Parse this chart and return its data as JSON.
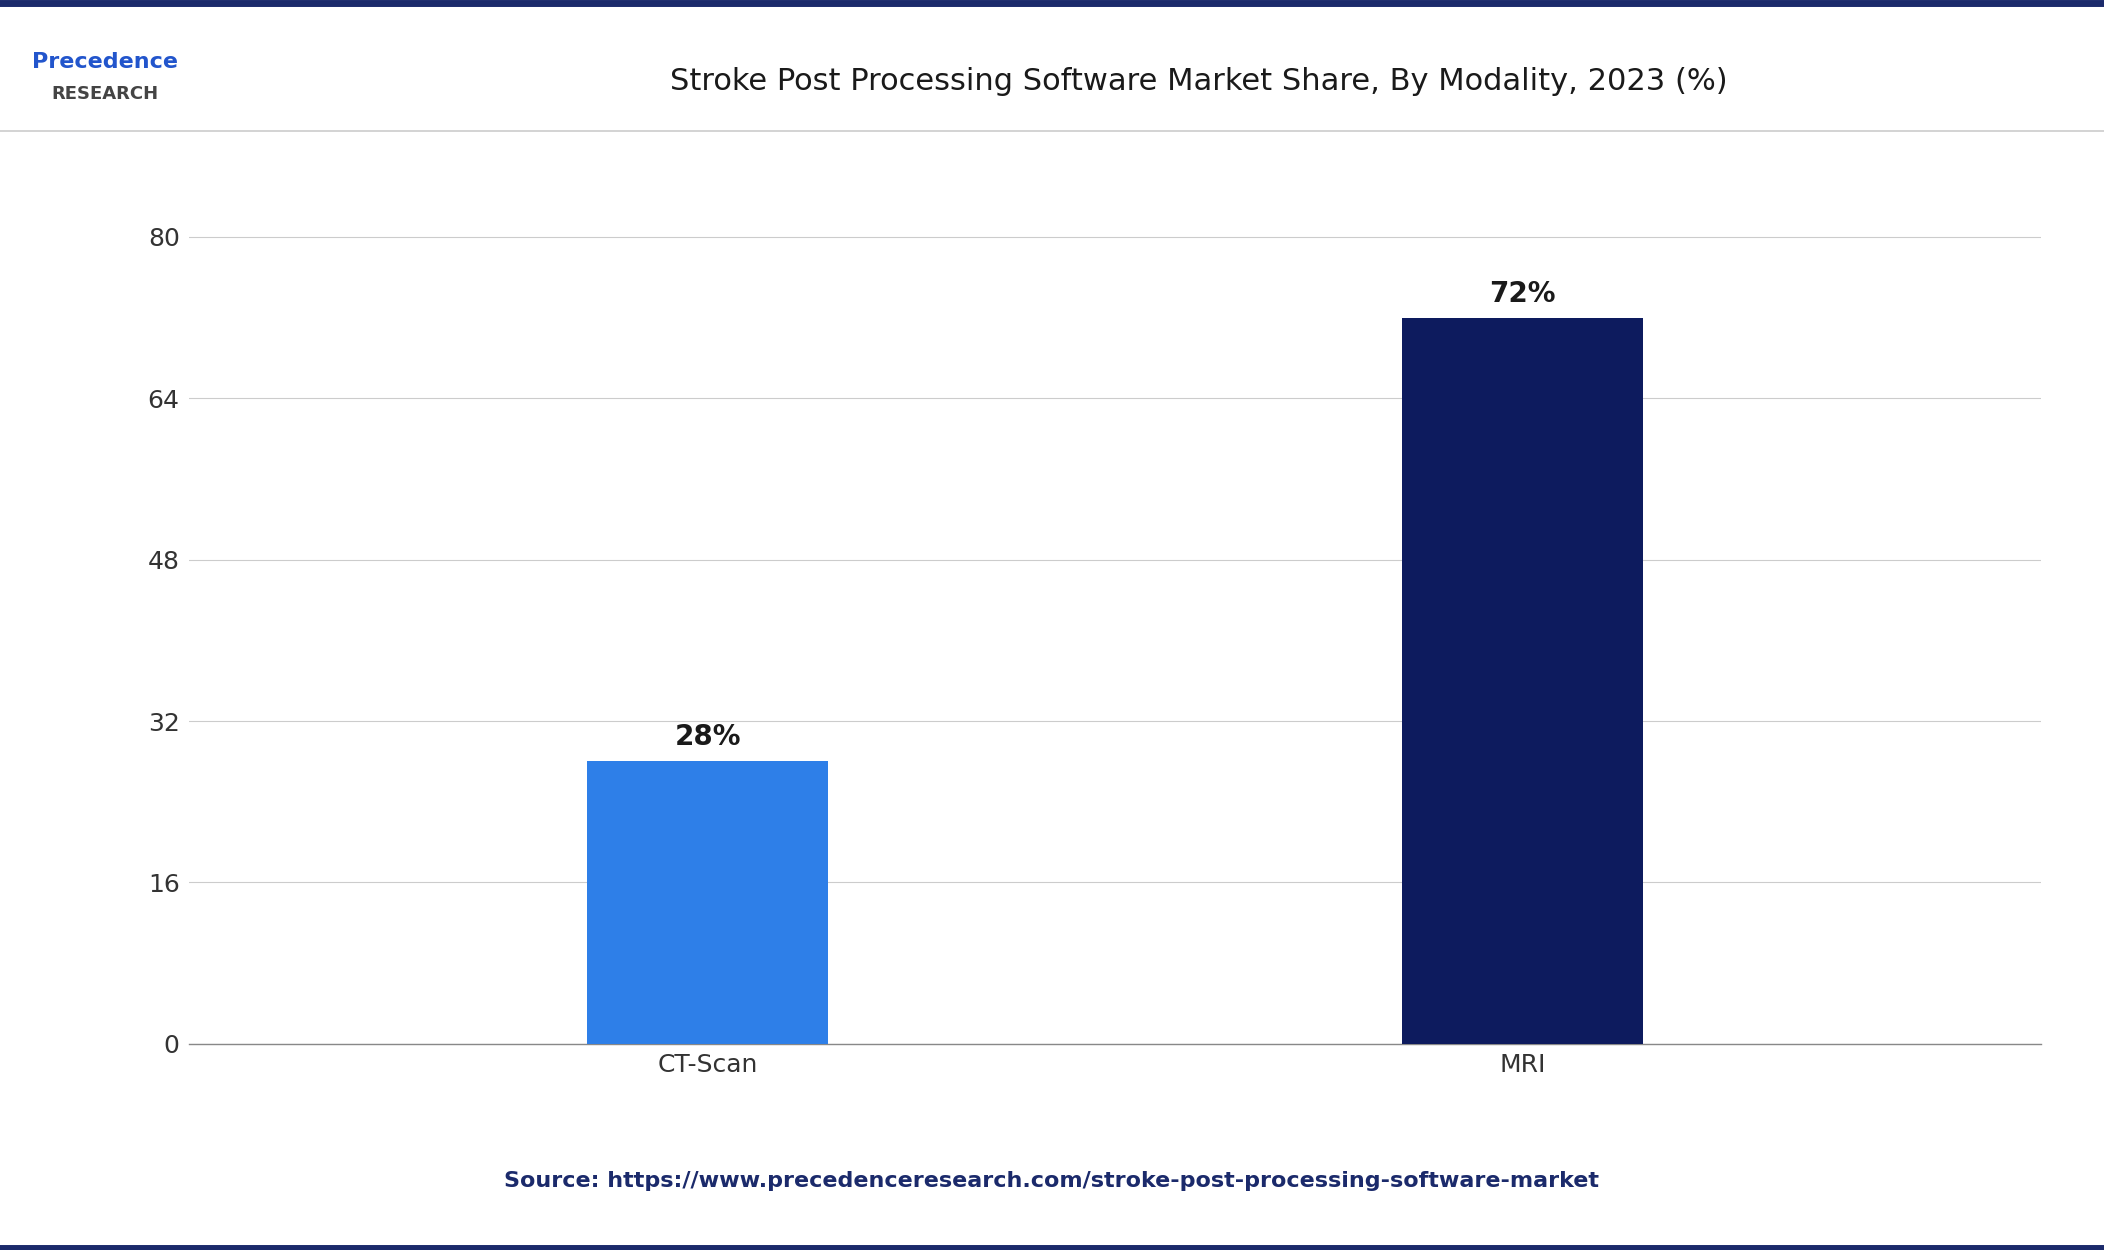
{
  "title": "Stroke Post Processing Software Market Share, By Modality, 2023 (%)",
  "categories": [
    "CT-Scan",
    "MRI"
  ],
  "values": [
    28,
    72
  ],
  "bar_colors": [
    "#2E7FE8",
    "#0D1B5E"
  ],
  "label_texts": [
    "28%",
    "72%"
  ],
  "yticks": [
    0,
    16,
    32,
    48,
    64,
    80
  ],
  "ylim": [
    0,
    88
  ],
  "background_color": "#ffffff",
  "source_text": "Source: https://www.precedenceresearch.com/stroke-post-processing-software-market",
  "source_color": "#1B2A6B",
  "title_color": "#1a1a1a",
  "tick_label_color": "#333333",
  "bar_label_color": "#1a1a1a",
  "grid_color": "#cccccc",
  "axis_line_color": "#888888",
  "bar_width": 0.13,
  "title_fontsize": 22,
  "tick_fontsize": 18,
  "label_fontsize": 20,
  "source_fontsize": 16,
  "top_border_color": "#1B2A6B",
  "bottom_border_color": "#1B2A6B",
  "x_positions": [
    0.28,
    0.72
  ]
}
